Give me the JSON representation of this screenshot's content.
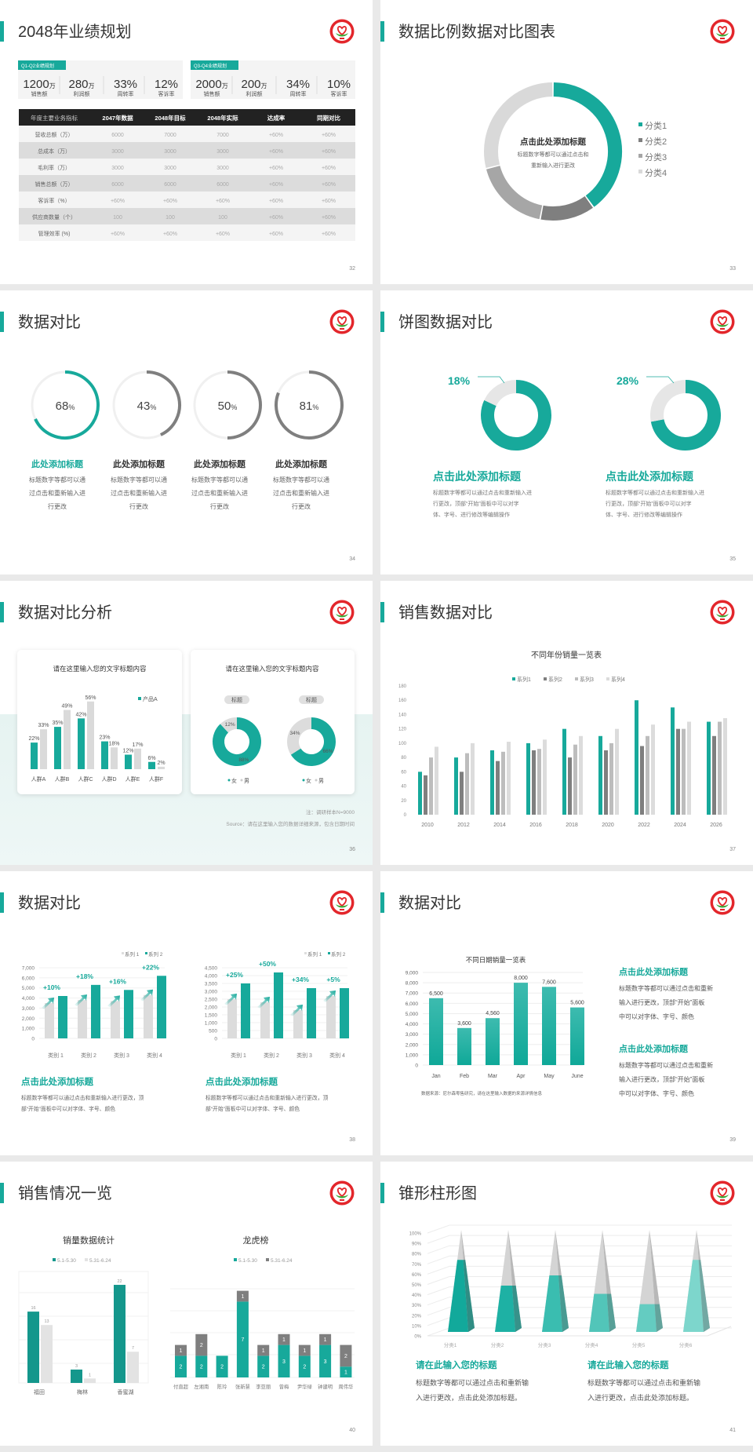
{
  "colors": {
    "accent": "#17a99b",
    "dark_gray": "#7f7f7f",
    "mid_gray": "#a6a6a6",
    "light_gray": "#d9d9d9",
    "table_header": "#222222",
    "logo_red": "#e3262b",
    "logo_green": "#3aa835"
  },
  "s32": {
    "title": "2048年业绩规划",
    "page": "32",
    "kpi_groups": [
      {
        "tag": "Q1-Q2业绩规划",
        "items": [
          {
            "value": "1200",
            "unit": "万",
            "label": "销售额"
          },
          {
            "value": "280",
            "unit": "万",
            "label": "利润额"
          },
          {
            "value": "33%",
            "unit": "",
            "label": "周转率"
          },
          {
            "value": "12%",
            "unit": "",
            "label": "客诉率"
          }
        ]
      },
      {
        "tag": "Q3-Q4业绩规划",
        "items": [
          {
            "value": "2000",
            "unit": "万",
            "label": "销售额"
          },
          {
            "value": "200",
            "unit": "万",
            "label": "利润额"
          },
          {
            "value": "34%",
            "unit": "",
            "label": "周转率"
          },
          {
            "value": "10%",
            "unit": "",
            "label": "客诉率"
          }
        ]
      }
    ],
    "table": {
      "headers": [
        "年度主要业务指标",
        "2047年数据",
        "2048年目标",
        "2048年实际",
        "达成率",
        "同期对比"
      ],
      "rows": [
        [
          "营收总额（万）",
          "6000",
          "7000",
          "7000",
          "+60%",
          "+60%"
        ],
        [
          "总成本（万）",
          "3000",
          "3000",
          "3000",
          "+60%",
          "+60%"
        ],
        [
          "毛利率（万）",
          "3000",
          "3000",
          "3000",
          "+60%",
          "+60%"
        ],
        [
          "销售总额（万）",
          "6000",
          "6000",
          "6000",
          "+60%",
          "+60%"
        ],
        [
          "客诉率（%）",
          "+60%",
          "+60%",
          "+60%",
          "+60%",
          "+60%"
        ],
        [
          "供应商数量（个）",
          "100",
          "100",
          "100",
          "+60%",
          "+60%"
        ],
        [
          "管理效率 (%)",
          "+60%",
          "+60%",
          "+60%",
          "+60%",
          "+60%"
        ]
      ]
    }
  },
  "s33": {
    "title": "数据比例数据对比图表",
    "page": "33",
    "center_title": "点击此处添加标题",
    "center_text": [
      "标题数字等都可以通过点击和",
      "重新输入进行更改"
    ]
  },
  "s34": {
    "title": "数据对比",
    "page": "34",
    "items": [
      {
        "value": 68,
        "unit": "%",
        "title": "此处添加标题",
        "desc": [
          "标题数字等都可以通",
          "过点击和重新输入进",
          "行更改"
        ]
      },
      {
        "value": 43,
        "unit": "%",
        "title": "此处添加标题",
        "desc": [
          "标题数字等都可以通",
          "过点击和重新输入进",
          "行更改"
        ]
      },
      {
        "value": 50,
        "unit": "%",
        "title": "此处添加标题",
        "desc": [
          "标题数字等都可以通",
          "过点击和重新输入进",
          "行更改"
        ]
      },
      {
        "value": 81,
        "unit": "%",
        "title": "此处添加标题",
        "desc": [
          "标题数字等都可以通",
          "过点击和重新输入进",
          "行更改"
        ]
      }
    ]
  },
  "s35": {
    "title": "饼图数据对比",
    "page": "35",
    "items": [
      {
        "value": 18,
        "label": "18%",
        "title": "点击此处添加标题",
        "desc": [
          "标题数字等都可以通过点击和重新输入进",
          "行更改，顶部“开始”面板中可以对字",
          "体、字号、进行修改等编辑操作"
        ]
      },
      {
        "value": 28,
        "label": "28%",
        "title": "点击此处添加标题",
        "desc": [
          "标题数字等都可以通过点击和重新输入进",
          "行更改，顶部“开始”面板中可以对字",
          "体、字号、进行修改等编辑操作"
        ]
      }
    ]
  },
  "s36": {
    "title": "数据对比分析",
    "page": "36",
    "card1_title": "请在这里输入您的文字标题内容",
    "card2_title": "请在这里输入您的文字标题内容",
    "note": "注：调研样本N=9000",
    "source": "Source：请在这里输入您的数据详细来源，包含日期时间"
  },
  "s37": {
    "title": "销售数据对比",
    "page": "37"
  },
  "s38": {
    "title": "数据对比",
    "page": "38",
    "blocks": [
      {
        "title": "点击此处添加标题",
        "desc": [
          "标题数字等都可以通过点击和重新输入进行更改，顶",
          "部“开始”面板中可以对字体、字号、颜色"
        ]
      },
      {
        "title": "点击此处添加标题",
        "desc": [
          "标题数字等都可以通过点击和重新输入进行更改，顶",
          "部“开始”面板中可以对字体、字号、颜色"
        ]
      }
    ]
  },
  "s39": {
    "title": "数据对比",
    "page": "39",
    "source": "数据来源：尼尔森零售研究，请在这里输入数据的来源详情信息",
    "blocks": [
      {
        "title": "点击此处添加标题",
        "desc": [
          "标题数字等都可以通过点击和重新",
          "输入进行更改，顶部“开始”面板",
          "中可以对字体、字号、颜色"
        ]
      },
      {
        "title": "点击此处添加标题",
        "desc": [
          "标题数字等都可以通过点击和重新",
          "输入进行更改，顶部“开始”面板",
          "中可以对字体、字号、颜色"
        ]
      }
    ]
  },
  "s40": {
    "title": "销售情况一览",
    "page": "40"
  },
  "s41": {
    "title": "锥形柱形图",
    "page": "41",
    "blocks": [
      {
        "title": "请在此输入您的标题",
        "desc": [
          "标题数字等都可以通过点击和重新输",
          "入进行更改，点击此处添加标题。"
        ]
      },
      {
        "title": "请在此输入您的标题",
        "desc": [
          "标题数字等都可以通过点击和重新输",
          "入进行更改，点击此处添加标题。"
        ]
      }
    ]
  },
  "chart_data": [
    {
      "type": "pie",
      "donut": true,
      "categories": [
        "分类1",
        "分类2",
        "分类3",
        "分类4"
      ],
      "values": [
        40,
        13,
        18,
        29
      ],
      "legend": "right"
    },
    {
      "type": "bar",
      "title": "请在这里输入您的文字标题内容",
      "categories": [
        "人群A",
        "人群B",
        "人群C",
        "人群D",
        "人群E",
        "人群F"
      ],
      "series": [
        {
          "name": "产品A",
          "values": [
            22,
            35,
            42,
            23,
            12,
            6
          ]
        },
        {
          "values": [
            33,
            49,
            56,
            18,
            17,
            2
          ]
        }
      ],
      "unit": "%"
    },
    {
      "type": "pie",
      "donut": true,
      "legend_entries": [
        "女",
        "男"
      ],
      "charts": [
        {
          "label": "标题",
          "values": [
            88,
            12
          ]
        },
        {
          "label": "标题",
          "values": [
            66,
            34
          ]
        }
      ],
      "unit": "%"
    },
    {
      "type": "bar",
      "title": "不同年份销量一览表",
      "categories": [
        "2010",
        "2012",
        "2014",
        "2016",
        "2018",
        "2020",
        "2022",
        "2024",
        "2026"
      ],
      "series": [
        {
          "name": "系列1",
          "values": [
            60,
            80,
            90,
            100,
            120,
            110,
            160,
            150,
            130
          ]
        },
        {
          "name": "系列2",
          "values": [
            55,
            60,
            75,
            90,
            80,
            90,
            96,
            120,
            110
          ]
        },
        {
          "name": "系列3",
          "values": [
            80,
            86,
            88,
            92,
            98,
            100,
            110,
            120,
            130
          ]
        },
        {
          "name": "系列4",
          "values": [
            95,
            100,
            102,
            105,
            110,
            120,
            126,
            130,
            135
          ]
        }
      ],
      "ylim": [
        0,
        180
      ],
      "yticks": [
        0,
        20,
        40,
        60,
        80,
        100,
        120,
        140,
        160,
        180
      ],
      "legend": "top"
    },
    {
      "type": "bar",
      "categories": [
        "类别 1",
        "类别 2",
        "类别 3",
        "类别 4"
      ],
      "series": [
        {
          "name": "系列 1",
          "values": [
            3500,
            3800,
            3700,
            4300
          ]
        },
        {
          "name": "系列 2",
          "values": [
            4200,
            5300,
            4800,
            6200
          ]
        }
      ],
      "annotations": [
        "+10%",
        "+18%",
        "+16%",
        "+22%"
      ],
      "ylim": [
        0,
        7000
      ],
      "yticks": [
        "0",
        "1,000",
        "2,000",
        "3,000",
        "4,000",
        "5,000",
        "6,000",
        "7,000"
      ],
      "legend": "top-right"
    },
    {
      "type": "bar",
      "categories": [
        "类别 1",
        "类别 2",
        "类别 3",
        "类别 4"
      ],
      "series": [
        {
          "name": "系列 1",
          "values": [
            2500,
            2300,
            1800,
            2700
          ]
        },
        {
          "name": "系列 2",
          "values": [
            3500,
            4200,
            3200,
            3200
          ]
        }
      ],
      "annotations": [
        "+25%",
        "+50%",
        "+34%",
        "+5%"
      ],
      "ylim": [
        0,
        4500
      ],
      "yticks": [
        "0",
        "500",
        "1,000",
        "1,500",
        "2,000",
        "2,500",
        "3,000",
        "3,500",
        "4,000",
        "4,500"
      ],
      "legend": "top-right"
    },
    {
      "type": "bar",
      "title": "不同日期销量一览表",
      "categories": [
        "Jan",
        "Feb",
        "Mar",
        "Apr",
        "May",
        "June"
      ],
      "values": [
        6500,
        3600,
        4560,
        8000,
        7600,
        5600
      ],
      "data_labels": [
        "6,500",
        "3,600",
        "4,560",
        "8,000",
        "7,600",
        "5,600"
      ],
      "ylim": [
        0,
        9000
      ],
      "yticks": [
        "0",
        "1,000",
        "2,000",
        "3,000",
        "4,000",
        "5,000",
        "6,000",
        "7,000",
        "8,000",
        "9,000"
      ]
    },
    {
      "type": "bar",
      "title": "销量数据统计",
      "categories": [
        "福田",
        "梅林",
        "香蜜湖"
      ],
      "series": [
        {
          "name": "5.1-5.30",
          "values": [
            16,
            3,
            22
          ]
        },
        {
          "name": "5.31-6.24",
          "values": [
            13,
            1,
            7
          ]
        }
      ],
      "legend": "top"
    },
    {
      "type": "bar",
      "stacked": true,
      "title": "龙虎榜",
      "categories": [
        "付直超",
        "左湘南",
        "陈玲",
        "张新慧",
        "李亚丽",
        "曾梅",
        "尹华绿",
        "钟建明",
        "周伟华"
      ],
      "series": [
        {
          "name": "5.1-5.30",
          "values": [
            2,
            2,
            2,
            7,
            2,
            3,
            2,
            3,
            1
          ]
        },
        {
          "name": "5.31-6.24",
          "values": [
            1,
            2,
            0,
            1,
            1,
            1,
            1,
            1,
            2
          ]
        }
      ],
      "legend": "top"
    },
    {
      "type": "bar",
      "shape": "pyramid",
      "categories": [
        "分类1",
        "分类2",
        "分类3",
        "分类4",
        "分类5",
        "分类6"
      ],
      "values": [
        70,
        45,
        55,
        37,
        27,
        70
      ],
      "ylim": [
        0,
        100
      ],
      "yticks": [
        "0%",
        "10%",
        "20%",
        "30%",
        "40%",
        "50%",
        "60%",
        "70%",
        "80%",
        "90%",
        "100%"
      ]
    }
  ]
}
